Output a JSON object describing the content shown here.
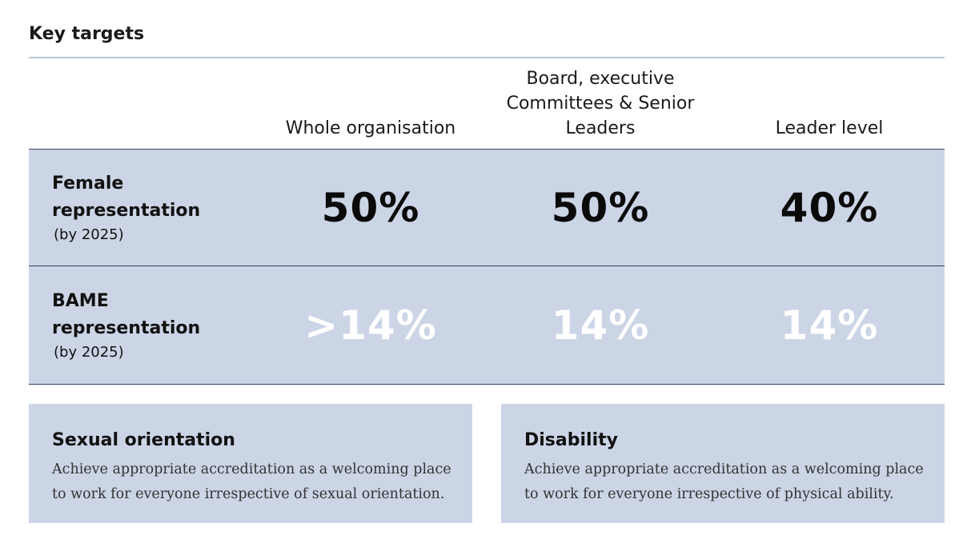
{
  "title": "Key targets",
  "columns": [
    "Whole organisation",
    "Board, executive Committees & Senior Leaders",
    "Leader level"
  ],
  "rows": [
    {
      "label": "Female representation",
      "note": "(by 2025)",
      "values": [
        "50%",
        "50%",
        "40%"
      ]
    },
    {
      "label": "BAME representation",
      "note": "(by 2025)",
      "values": [
        ">14%",
        "14%",
        "14%"
      ]
    }
  ],
  "boxes": [
    {
      "title": "Sexual orientation",
      "text": "Achieve appropriate accreditation as a welcoming place to work for everyone irrespective of sexual orientation."
    },
    {
      "title": "Disability",
      "text": "Achieve appropriate accreditation as a welcoming place to work for everyone irrespective of physical ability."
    }
  ],
  "colors": {
    "row_background": "#ccd5e6",
    "rule_dark": "#33415c",
    "rule_light": "#bcc6d8",
    "bame_values": "#ffffff"
  }
}
